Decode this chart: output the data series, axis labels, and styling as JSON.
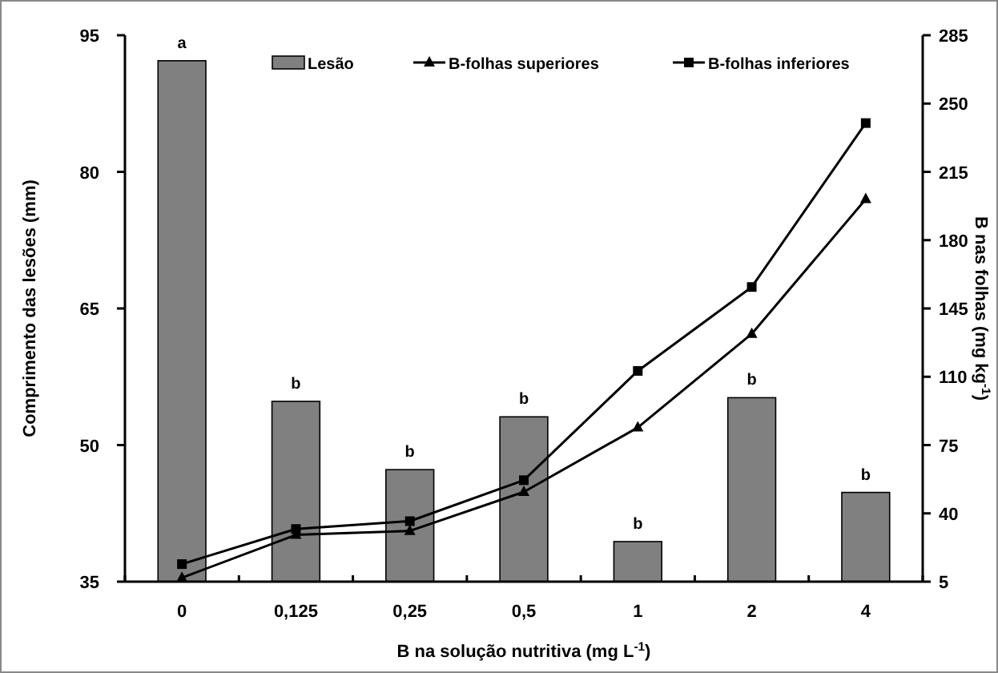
{
  "chart_data": {
    "type": "bar",
    "xlabel": "B na solução nutritiva (mg L$^{-1}$)",
    "ylabel": "Comprimento das lesões (mm)",
    "y2label": "B nas folhas (mg kg$^{-1}$)",
    "categories": [
      "0",
      "0,125",
      "0,25",
      "0,5",
      "1",
      "2",
      "4"
    ],
    "series": [
      {
        "name": "Lesão",
        "color": "#808080",
        "values": [
          92.2,
          54.8,
          47.3,
          53.1,
          39.4,
          55.2,
          44.8
        ]
      },
      {
        "name": "B-folhas superiores",
        "type": "line",
        "axis": "y2",
        "marker": "triangle",
        "color": "#000000",
        "values": [
          7,
          29,
          31,
          51,
          84,
          132,
          201
        ]
      },
      {
        "name": "B-folhas inferiores",
        "type": "line",
        "axis": "y2",
        "marker": "square",
        "color": "#000000",
        "values": [
          14,
          32,
          36,
          57,
          113,
          156,
          240
        ]
      }
    ],
    "ylim": [
      35,
      95
    ],
    "yticks": [
      35,
      50,
      65,
      80,
      95
    ],
    "y2lim": [
      5,
      285
    ],
    "y2ticks": [
      5,
      40,
      75,
      110,
      145,
      180,
      215,
      250,
      285
    ],
    "legend": "top",
    "grid": false,
    "annotations": [
      {
        "text": "a",
        "x": "0",
        "y": 92.2
      },
      {
        "text": "b",
        "x": "0,125",
        "y": 54.8
      },
      {
        "text": "b",
        "x": "0,25",
        "y": 47.3
      },
      {
        "text": "b",
        "x": "0,5",
        "y": 53.1
      },
      {
        "text": "b",
        "x": "1",
        "y": 39.4
      },
      {
        "text": "b",
        "x": "2",
        "y": 55.2
      },
      {
        "text": "b",
        "x": "4",
        "y": 44.8
      }
    ]
  }
}
